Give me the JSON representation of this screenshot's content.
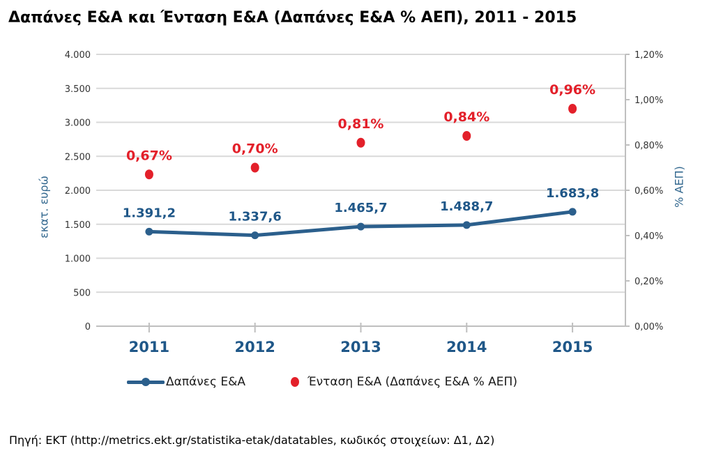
{
  "title": "Δαπάνες Ε&Α και Ένταση Ε&Α (Δαπάνες Ε&Α % ΑΕΠ), 2011 - 2015",
  "source": "Πηγή: ΕΚΤ (http://metrics.ekt.gr/statistika-etak/datatables, κωδικός στοιχείων: Δ1, Δ2)",
  "colors": {
    "line_blue": "#2B5F8C",
    "text_blue": "#1F5788",
    "axis_title_blue": "#33688F",
    "red": "#E3202A",
    "grid": "#D9D9D9",
    "axis_line": "#BFBFBF",
    "tick_text": "#333333",
    "legend_text": "#1a1a1a"
  },
  "left_axis": {
    "title": "εκατ. ευρώ",
    "tick_labels": [
      "4.000",
      "3.500",
      "3.000",
      "2.500",
      "2.000",
      "1.500",
      "1.000",
      "500",
      "0"
    ]
  },
  "right_axis": {
    "title": "% ΑΕΠ)",
    "tick_labels": [
      "1,20%",
      "1,00%",
      "0,80%",
      "0,60%",
      "0,40%",
      "0,20%",
      "0,00%"
    ]
  },
  "x_axis": {
    "tick_labels": [
      "2011",
      "2012",
      "2013",
      "2014",
      "2015"
    ]
  },
  "legend": {
    "items": [
      {
        "label": "Δαπάνες Ε&Α",
        "marker": "line-with-dot"
      },
      {
        "label": "Ένταση Ε&Α (Δαπάνες Ε&Α % ΑΕΠ)",
        "marker": "dot"
      }
    ]
  },
  "chart_data": {
    "type": "line",
    "title": "Δαπάνες Ε&Α και Ένταση Ε&Α (Δαπάνες Ε&Α % ΑΕΠ), 2011 - 2015",
    "categories": [
      "2011",
      "2012",
      "2013",
      "2014",
      "2015"
    ],
    "series": [
      {
        "name": "Δαπάνες Ε&Α",
        "type": "line",
        "y_axis": "left",
        "values": [
          1391.2,
          1337.6,
          1465.7,
          1488.7,
          1683.8
        ],
        "point_labels": [
          "1.391,2",
          "1.337,6",
          "1.465,7",
          "1.488,7",
          "1.683,8"
        ]
      },
      {
        "name": "Ένταση Ε&Α (Δαπάνες Ε&Α % ΑΕΠ)",
        "type": "scatter",
        "y_axis": "right",
        "values": [
          0.67,
          0.7,
          0.81,
          0.84,
          0.96
        ],
        "point_labels": [
          "0,67%",
          "0,70%",
          "0,81%",
          "0,84%",
          "0,96%"
        ]
      }
    ],
    "ylabel_left": "εκατ. ευρώ",
    "ylabel_right": "% ΑΕΠ)",
    "ylim_left": [
      0,
      4000
    ],
    "ylim_right_percent": [
      0,
      1.2
    ],
    "grid": "horizontal",
    "legend_position": "bottom"
  }
}
